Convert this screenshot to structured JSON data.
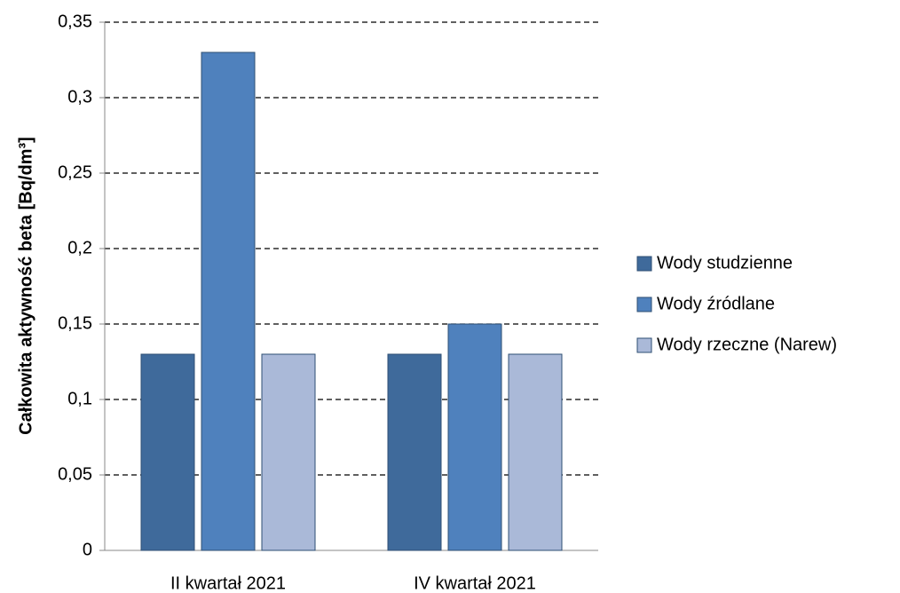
{
  "chart_data": {
    "type": "bar",
    "y_label": "Całkowita aktywność beta [Bq/dm³]",
    "categories": [
      "II kwartał 2021",
      "IV kwartał 2021"
    ],
    "series": [
      {
        "name": "Wody studzienne",
        "color": "#3f6a9b",
        "values": [
          0.13,
          0.13
        ]
      },
      {
        "name": "Wody źródlane",
        "color": "#4f81bd",
        "values": [
          0.33,
          0.15
        ]
      },
      {
        "name": "Wody rzeczne (Narew)",
        "color": "#aab9d8",
        "values": [
          0.13,
          0.13
        ]
      }
    ],
    "ylim": [
      0,
      0.35
    ],
    "yticks": [
      0,
      {
        "value": 0.05,
        "label": "0,05"
      },
      {
        "value": 0.1,
        "label": "0,1"
      },
      {
        "value": 0.15,
        "label": "0,15"
      },
      {
        "value": 0.2,
        "label": "0,2"
      },
      {
        "value": 0.25,
        "label": "0,25"
      },
      {
        "value": 0.3,
        "label": "0,3"
      },
      {
        "value": 0.35,
        "label": "0,35"
      }
    ],
    "grid": true,
    "legend": "right"
  }
}
